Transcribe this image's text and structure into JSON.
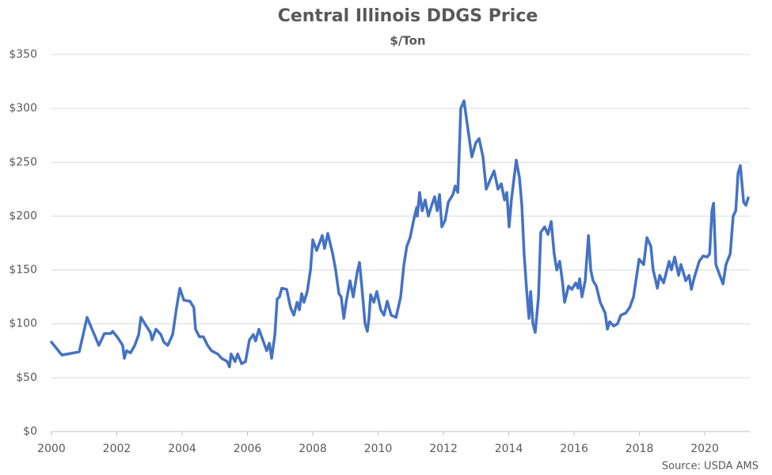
{
  "chart_data": {
    "type": "line",
    "title": "Central Illinois DDGS Price",
    "subtitle": "$/Ton",
    "source": "Source: USDA AMS",
    "color": "#4472c4",
    "grid": true,
    "xlim": [
      2000,
      2021.38
    ],
    "xticks": [
      2000,
      2002,
      2004,
      2006,
      2008,
      2010,
      2012,
      2014,
      2016,
      2018,
      2020
    ],
    "ylim": [
      0,
      350
    ],
    "yticks": [
      {
        "value": 0,
        "label": "$0"
      },
      {
        "value": 50,
        "label": "$50"
      },
      {
        "value": 100,
        "label": "$100"
      },
      {
        "value": 150,
        "label": "$150"
      },
      {
        "value": 200,
        "label": "$200"
      },
      {
        "value": 250,
        "label": "$250"
      },
      {
        "value": 300,
        "label": "$300"
      },
      {
        "value": 350,
        "label": "$350"
      }
    ],
    "x": [
      2000,
      2000.32,
      2000.85,
      2001.09,
      2001.45,
      2001.62,
      2001.82,
      2001.87,
      2002.01,
      2002.18,
      2002.23,
      2002.3,
      2002.42,
      2002.55,
      2002.67,
      2002.74,
      2002.86,
      2003.03,
      2003.08,
      2003.2,
      2003.35,
      2003.44,
      2003.56,
      2003.71,
      2003.83,
      2003.93,
      2004.05,
      2004.24,
      2004.36,
      2004.41,
      2004.53,
      2004.65,
      2004.78,
      2004.9,
      2005.09,
      2005.21,
      2005.38,
      2005.45,
      2005.5,
      2005.62,
      2005.7,
      2005.82,
      2005.94,
      2006.06,
      2006.18,
      2006.25,
      2006.35,
      2006.47,
      2006.59,
      2006.67,
      2006.74,
      2006.84,
      2006.91,
      2006.98,
      2007.05,
      2007.2,
      2007.32,
      2007.42,
      2007.52,
      2007.59,
      2007.66,
      2007.73,
      2007.83,
      2007.93,
      2008,
      2008.12,
      2008.29,
      2008.36,
      2008.46,
      2008.61,
      2008.7,
      2008.8,
      2008.87,
      2008.95,
      2009.02,
      2009.14,
      2009.24,
      2009.36,
      2009.43,
      2009.5,
      2009.6,
      2009.67,
      2009.72,
      2009.77,
      2009.87,
      2009.96,
      2010.08,
      2010.18,
      2010.28,
      2010.4,
      2010.55,
      2010.69,
      2010.79,
      2010.88,
      2010.98,
      2011.08,
      2011.18,
      2011.2,
      2011.27,
      2011.35,
      2011.44,
      2011.54,
      2011.64,
      2011.73,
      2011.81,
      2011.88,
      2011.95,
      2012.05,
      2012.15,
      2012.29,
      2012.36,
      2012.44,
      2012.48,
      2012.53,
      2012.63,
      2012.73,
      2012.87,
      2012.99,
      2013.09,
      2013.21,
      2013.31,
      2013.45,
      2013.55,
      2013.67,
      2013.77,
      2013.87,
      2013.94,
      2014.01,
      2014.08,
      2014.16,
      2014.23,
      2014.33,
      2014.4,
      2014.47,
      2014.55,
      2014.62,
      2014.67,
      2014.74,
      2014.81,
      2014.91,
      2014.98,
      2015.1,
      2015.2,
      2015.3,
      2015.39,
      2015.47,
      2015.56,
      2015.64,
      2015.71,
      2015.83,
      2015.93,
      2016.05,
      2016.12,
      2016.17,
      2016.24,
      2016.34,
      2016.44,
      2016.51,
      2016.58,
      2016.68,
      2016.8,
      2016.95,
      2017.02,
      2017.09,
      2017.21,
      2017.33,
      2017.43,
      2017.58,
      2017.7,
      2017.82,
      2017.99,
      2018.13,
      2018.23,
      2018.35,
      2018.42,
      2018.5,
      2018.55,
      2018.62,
      2018.74,
      2018.91,
      2018.98,
      2019.08,
      2019.2,
      2019.27,
      2019.42,
      2019.52,
      2019.59,
      2019.68,
      2019.83,
      2019.95,
      2020.07,
      2020.15,
      2020.22,
      2020.27,
      2020.34,
      2020.46,
      2020.56,
      2020.65,
      2020.78,
      2020.87,
      2020.95,
      2021.02,
      2021.09,
      2021.19,
      2021.26,
      2021.33
    ],
    "values": [
      83,
      71,
      74,
      106,
      80,
      91,
      91,
      93,
      88,
      80,
      68,
      75,
      73,
      80,
      90,
      106,
      100,
      92,
      85,
      95,
      90,
      83,
      80,
      90,
      115,
      133,
      122,
      121,
      115,
      95,
      88,
      88,
      80,
      75,
      72,
      68,
      65,
      60,
      72,
      65,
      72,
      63,
      65,
      85,
      90,
      84,
      95,
      85,
      75,
      82,
      68,
      90,
      123,
      125,
      133,
      132,
      115,
      108,
      120,
      113,
      128,
      120,
      130,
      150,
      178,
      168,
      182,
      170,
      184,
      165,
      150,
      128,
      125,
      105,
      120,
      140,
      125,
      148,
      157,
      135,
      100,
      93,
      105,
      127,
      120,
      130,
      113,
      108,
      121,
      108,
      106,
      125,
      155,
      172,
      180,
      195,
      208,
      200,
      222,
      205,
      215,
      200,
      210,
      218,
      205,
      220,
      190,
      196,
      213,
      220,
      228,
      222,
      255,
      300,
      307,
      285,
      255,
      268,
      272,
      255,
      225,
      235,
      242,
      225,
      230,
      215,
      222,
      190,
      215,
      235,
      252,
      235,
      210,
      165,
      130,
      105,
      130,
      100,
      92,
      125,
      185,
      190,
      183,
      195,
      165,
      150,
      158,
      140,
      120,
      135,
      132,
      138,
      133,
      142,
      125,
      140,
      182,
      150,
      140,
      135,
      120,
      110,
      95,
      102,
      98,
      100,
      108,
      110,
      115,
      125,
      160,
      155,
      180,
      172,
      150,
      140,
      133,
      145,
      138,
      158,
      150,
      162,
      145,
      155,
      140,
      145,
      132,
      143,
      158,
      163,
      162,
      165,
      205,
      212,
      155,
      145,
      137,
      155,
      165,
      200,
      205,
      240,
      247,
      213,
      210,
      217
    ]
  }
}
